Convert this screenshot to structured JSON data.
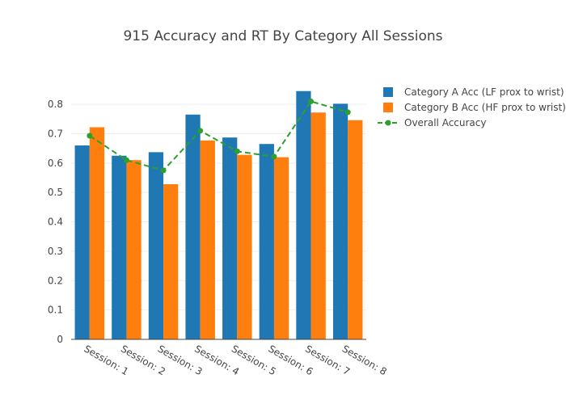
{
  "chart_data": {
    "type": "bar",
    "title": "915 Accuracy and RT By Category All Sessions",
    "xlabel": "",
    "ylabel": "",
    "ylim": [
      0,
      0.88
    ],
    "yticks": [
      0,
      0.1,
      0.2,
      0.3,
      0.4,
      0.5,
      0.6,
      0.7,
      0.8
    ],
    "ytick_labels": [
      "0",
      "0.1",
      "0.2",
      "0.3",
      "0.4",
      "0.5",
      "0.6",
      "0.7",
      "0.8"
    ],
    "categories": [
      "Session: 1",
      "Session: 2",
      "Session: 3",
      "Session: 4",
      "Session: 5",
      "Session: 6",
      "Session: 7",
      "Session: 8"
    ],
    "grid": true,
    "legend_position": "top-right",
    "series": [
      {
        "name": "Category A Acc (LF prox to wrist)",
        "type": "bar",
        "color": "#1f77b4",
        "values": [
          0.66,
          0.625,
          0.637,
          0.765,
          0.687,
          0.665,
          0.845,
          0.802
        ]
      },
      {
        "name": "Category B Acc (HF prox to wrist)",
        "type": "bar",
        "color": "#ff7f0e",
        "values": [
          0.722,
          0.61,
          0.528,
          0.677,
          0.628,
          0.62,
          0.772,
          0.746
        ]
      },
      {
        "name": "Overall Accuracy",
        "type": "line",
        "style": "dashed",
        "color": "#2ca02c",
        "values": [
          0.693,
          0.61,
          0.575,
          0.71,
          0.64,
          0.622,
          0.81,
          0.773
        ]
      }
    ]
  }
}
